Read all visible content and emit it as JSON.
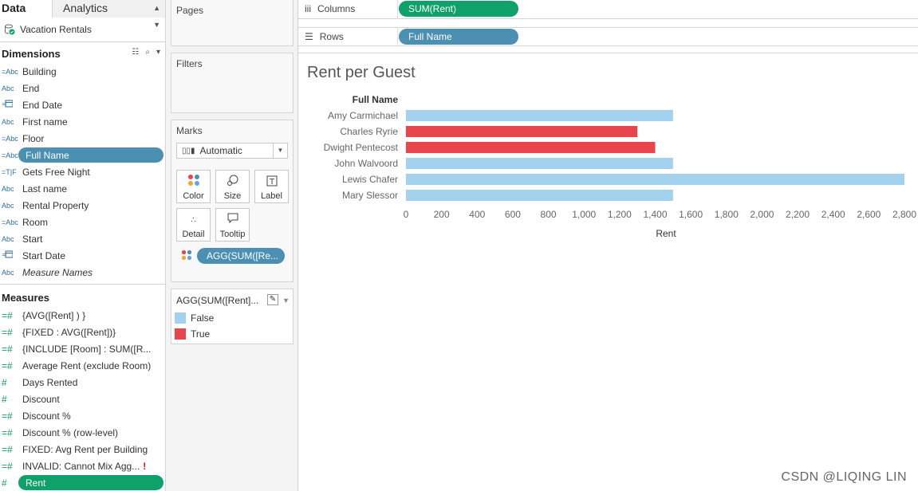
{
  "tabs": {
    "data": "Data",
    "analytics": "Analytics"
  },
  "datasource": "Vacation Rentals",
  "dimensions": {
    "title": "Dimensions",
    "items": [
      {
        "icon": "=Abc",
        "label": "Building"
      },
      {
        "icon": "Abc",
        "label": "End"
      },
      {
        "icon": "=date",
        "label": "End Date"
      },
      {
        "icon": "Abc",
        "label": "First name"
      },
      {
        "icon": "=Abc",
        "label": "Floor"
      },
      {
        "icon": "=Abc",
        "label": "Full Name",
        "selected": true
      },
      {
        "icon": "=T|F",
        "label": "Gets Free Night"
      },
      {
        "icon": "Abc",
        "label": "Last name"
      },
      {
        "icon": "Abc",
        "label": "Rental Property"
      },
      {
        "icon": "=Abc",
        "label": "Room"
      },
      {
        "icon": "Abc",
        "label": "Start"
      },
      {
        "icon": "=date",
        "label": "Start Date"
      },
      {
        "icon": "Abc",
        "label": "Measure Names",
        "italic": true
      }
    ]
  },
  "measures": {
    "title": "Measures",
    "items": [
      {
        "label": "{AVG([Rent] ) }"
      },
      {
        "label": "{FIXED : AVG([Rent])}"
      },
      {
        "label": "{INCLUDE [Room] : SUM([R..."
      },
      {
        "label": "Average Rent (exclude Room)"
      },
      {
        "label": "Days Rented"
      },
      {
        "label": "Discount"
      },
      {
        "label": "Discount %"
      },
      {
        "label": "Discount % (row-level)"
      },
      {
        "label": "FIXED: Avg Rent per Building"
      },
      {
        "label": "INVALID: Cannot Mix Agg...",
        "warning": "!"
      },
      {
        "label": "Rent",
        "selected": true
      }
    ]
  },
  "cards": {
    "pages": "Pages",
    "filters": "Filters",
    "marks": "Marks",
    "mark_type": "Automatic",
    "buttons": {
      "color": "Color",
      "size": "Size",
      "label": "Label",
      "detail": "Detail",
      "tooltip": "Tooltip"
    },
    "color_pill": "AGG(SUM([Re...",
    "legend_title": "AGG(SUM([Rent]...",
    "legend": [
      {
        "label": "False",
        "color": "#a3d1ee"
      },
      {
        "label": "True",
        "color": "#e8464c"
      }
    ]
  },
  "shelves": {
    "columns_label": "Columns",
    "columns_pill": "SUM(Rent)",
    "rows_label": "Rows",
    "rows_pill": "Full Name"
  },
  "watermark": "CSDN @LIQING LIN",
  "chart_data": {
    "type": "bar",
    "orientation": "horizontal",
    "title": "Rent per Guest",
    "row_header": "Full Name",
    "xlabel": "Rent",
    "categories": [
      "Amy Carmichael",
      "Charles Ryrie",
      "Dwight Pentecost",
      "John Walvoord",
      "Lewis Chafer",
      "Mary Slessor"
    ],
    "values": [
      1500,
      1300,
      1400,
      1500,
      2800,
      1500
    ],
    "color_flag": [
      "False",
      "True",
      "True",
      "False",
      "False",
      "False"
    ],
    "colors": {
      "False": "#a3d1ee",
      "True": "#e8464c"
    },
    "xlim": [
      0,
      2800
    ],
    "ticks": [
      "0",
      "200",
      "400",
      "600",
      "800",
      "1,000",
      "1,200",
      "1,400",
      "1,600",
      "1,800",
      "2,000",
      "2,200",
      "2,400",
      "2,600",
      "2,800"
    ],
    "grid": false,
    "legend_position": "left-pane"
  }
}
